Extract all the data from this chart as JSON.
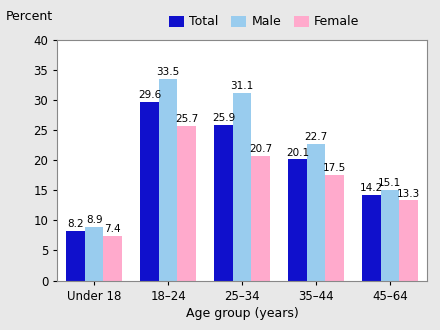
{
  "categories": [
    "Under 18",
    "18–24",
    "25–34",
    "35–44",
    "45–64"
  ],
  "total": [
    8.2,
    29.6,
    25.9,
    20.1,
    14.2
  ],
  "male": [
    8.9,
    33.5,
    31.1,
    22.7,
    15.1
  ],
  "female": [
    7.4,
    25.7,
    20.7,
    17.5,
    13.3
  ],
  "colors": {
    "total": "#1010CC",
    "male": "#99CCEE",
    "female": "#FFAACC"
  },
  "legend_labels": [
    "Total",
    "Male",
    "Female"
  ],
  "ylabel": "Percent",
  "xlabel": "Age group (years)",
  "ylim": [
    0,
    40
  ],
  "yticks": [
    0,
    5,
    10,
    15,
    20,
    25,
    30,
    35,
    40
  ],
  "bar_width": 0.25,
  "label_fontsize": 7.5,
  "axis_fontsize": 9,
  "tick_fontsize": 8.5,
  "legend_fontsize": 9,
  "figure_bg": "#e8e8e8",
  "plot_bg": "#ffffff",
  "border_color": "#888888"
}
